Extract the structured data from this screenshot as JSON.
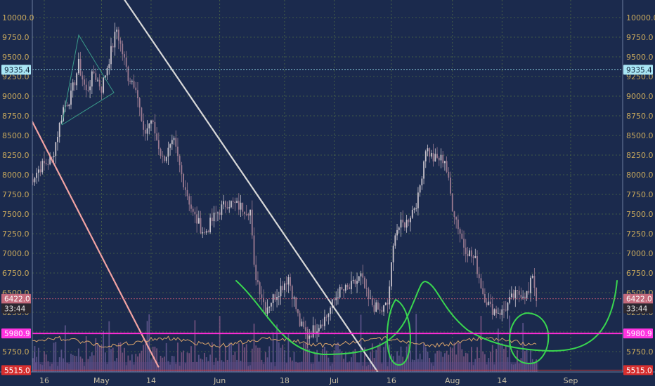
{
  "chart_data": {
    "type": "candlestick",
    "y_axis": {
      "ticks": [
        "10000.0",
        "9750.0",
        "9500.0",
        "9250.0",
        "9000.0",
        "8750.0",
        "8500.0",
        "8250.0",
        "8000.0",
        "7750.0",
        "7500.0",
        "7250.0",
        "7000.0",
        "6750.0",
        "6500.0",
        "6250.0",
        "6000.0",
        "5750.0"
      ],
      "range": [
        5500,
        10100
      ]
    },
    "x_axis": {
      "ticks": [
        "16",
        "May",
        "14",
        "Jun",
        "18",
        "Jul",
        "16",
        "Aug",
        "14",
        "Sep"
      ]
    },
    "grid": true,
    "price_tags": {
      "high_line": "9335.4",
      "current": "6422.0",
      "countdown": "33:44",
      "support": "5980.9",
      "low": "5515.0"
    },
    "close_series": [
      {
        "d": "2018-04-12",
        "v": 7900
      },
      {
        "d": "2018-04-15",
        "v": 8100
      },
      {
        "d": "2018-04-18",
        "v": 8200
      },
      {
        "d": "2018-04-21",
        "v": 8850
      },
      {
        "d": "2018-04-23",
        "v": 9000
      },
      {
        "d": "2018-04-25",
        "v": 9400
      },
      {
        "d": "2018-04-27",
        "v": 9050
      },
      {
        "d": "2018-04-29",
        "v": 9300
      },
      {
        "d": "2018-05-01",
        "v": 9100
      },
      {
        "d": "2018-05-05",
        "v": 9850
      },
      {
        "d": "2018-05-08",
        "v": 9250
      },
      {
        "d": "2018-05-10",
        "v": 9150
      },
      {
        "d": "2018-05-12",
        "v": 8500
      },
      {
        "d": "2018-05-14",
        "v": 8700
      },
      {
        "d": "2018-05-17",
        "v": 8200
      },
      {
        "d": "2018-05-20",
        "v": 8400
      },
      {
        "d": "2018-05-22",
        "v": 8000
      },
      {
        "d": "2018-05-25",
        "v": 7500
      },
      {
        "d": "2018-05-28",
        "v": 7250
      },
      {
        "d": "2018-05-31",
        "v": 7500
      },
      {
        "d": "2018-06-03",
        "v": 7650
      },
      {
        "d": "2018-06-06",
        "v": 7600
      },
      {
        "d": "2018-06-09",
        "v": 7550
      },
      {
        "d": "2018-06-10",
        "v": 6800
      },
      {
        "d": "2018-06-13",
        "v": 6300
      },
      {
        "d": "2018-06-16",
        "v": 6500
      },
      {
        "d": "2018-06-19",
        "v": 6700
      },
      {
        "d": "2018-06-22",
        "v": 6100
      },
      {
        "d": "2018-06-24",
        "v": 5950
      },
      {
        "d": "2018-06-27",
        "v": 6100
      },
      {
        "d": "2018-06-29",
        "v": 6200
      },
      {
        "d": "2018-07-02",
        "v": 6500
      },
      {
        "d": "2018-07-05",
        "v": 6550
      },
      {
        "d": "2018-07-08",
        "v": 6700
      },
      {
        "d": "2018-07-10",
        "v": 6400
      },
      {
        "d": "2018-07-13",
        "v": 6250
      },
      {
        "d": "2018-07-15",
        "v": 6350
      },
      {
        "d": "2018-07-17",
        "v": 7300
      },
      {
        "d": "2018-07-20",
        "v": 7400
      },
      {
        "d": "2018-07-23",
        "v": 7700
      },
      {
        "d": "2018-07-25",
        "v": 8350
      },
      {
        "d": "2018-07-27",
        "v": 8200
      },
      {
        "d": "2018-07-30",
        "v": 8200
      },
      {
        "d": "2018-08-01",
        "v": 7600
      },
      {
        "d": "2018-08-04",
        "v": 7100
      },
      {
        "d": "2018-08-07",
        "v": 6900
      },
      {
        "d": "2018-08-09",
        "v": 6500
      },
      {
        "d": "2018-08-11",
        "v": 6300
      },
      {
        "d": "2018-08-14",
        "v": 6250
      },
      {
        "d": "2018-08-17",
        "v": 6450
      },
      {
        "d": "2018-08-19",
        "v": 6500
      },
      {
        "d": "2018-08-21",
        "v": 6480
      },
      {
        "d": "2018-08-22",
        "v": 6750
      },
      {
        "d": "2018-08-23",
        "v": 6422
      }
    ],
    "annotations": {
      "trendlines": [
        {
          "name": "upper-downtrend",
          "color": "#d8d8d8",
          "from": {
            "d": "2018-05-06",
            "v": 10300
          },
          "to": {
            "d": "2018-07-13",
            "v": 5450
          }
        },
        {
          "name": "lower-downtrend",
          "color": "#f2a3a3",
          "from": {
            "d": "2018-04-11",
            "v": 8850
          },
          "to": {
            "d": "2018-05-16",
            "v": 5550
          }
        }
      ]
    }
  }
}
